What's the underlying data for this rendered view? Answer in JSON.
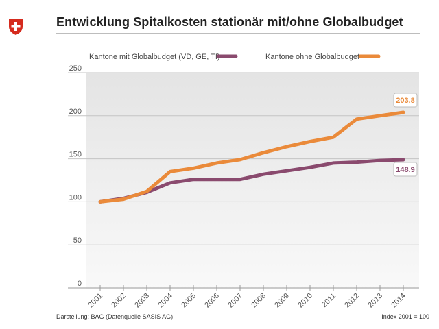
{
  "header": {
    "title": "Entwicklung Spitalkosten stationär mit/ohne Globalbudget",
    "logo_icon": "swiss-cross-icon"
  },
  "footer": {
    "source": "Darstellung: BAG (Datenquelle SASIS AG)",
    "index_note": "Index 2001 = 100"
  },
  "colors": {
    "with_budget": "#8a4a6e",
    "without_budget": "#ea8a3a",
    "swiss_red": "#d52b1e"
  },
  "chart_data": {
    "type": "line",
    "title": "Entwicklung Spitalkosten stationär mit/ohne Globalbudget",
    "xlabel": "",
    "ylabel": "",
    "categories": [
      "2001",
      "2002",
      "2003",
      "2004",
      "2005",
      "2006",
      "2007",
      "2008",
      "2009",
      "2010",
      "2011",
      "2012",
      "2013",
      "2014"
    ],
    "ylim": [
      0,
      250
    ],
    "yticks": [
      0,
      50,
      100,
      150,
      200,
      250
    ],
    "grid": true,
    "legend_position": "top",
    "series": [
      {
        "name": "Kantone mit Globalbudget (VD, GE, TI)",
        "color": "#8a4a6e",
        "values": [
          100,
          104,
          111,
          122,
          126,
          126,
          126,
          132,
          136,
          140,
          145,
          146,
          148,
          148.9
        ],
        "end_label": "148.9"
      },
      {
        "name": "Kantone ohne Globalbudget",
        "color": "#ea8a3a",
        "values": [
          100,
          103,
          112,
          135,
          139,
          145,
          149,
          157,
          164,
          170,
          175,
          196,
          200,
          203.8
        ],
        "end_label": "203.8"
      }
    ]
  }
}
